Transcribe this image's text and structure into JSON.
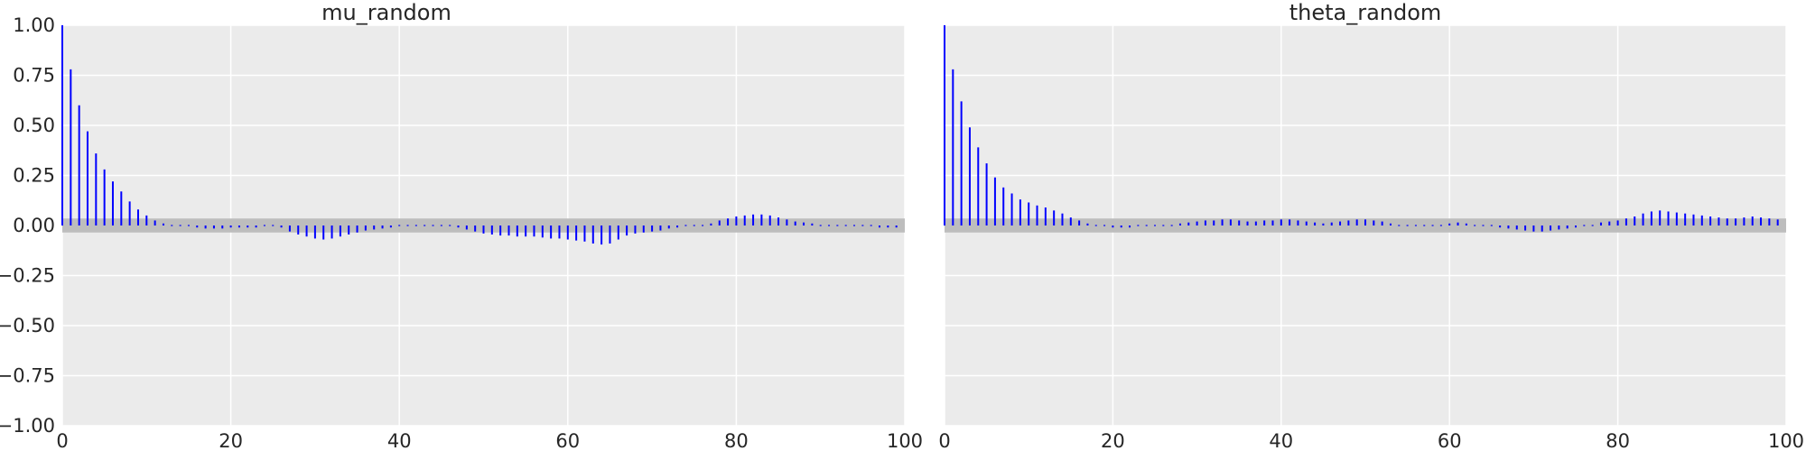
{
  "chart_data": [
    {
      "type": "bar",
      "subtype": "autocorrelation-stem",
      "title": "mu_random",
      "xlabel": "",
      "ylabel": "",
      "xlim": [
        0,
        100
      ],
      "ylim": [
        -1.0,
        1.0
      ],
      "x_ticks": [
        "0",
        "20",
        "40",
        "60",
        "80",
        "100"
      ],
      "y_ticks": [
        "1.00",
        "0.75",
        "0.50",
        "0.25",
        "0.00",
        "−0.25",
        "−0.50",
        "−0.75",
        "−1.00"
      ],
      "grid": true,
      "confidence_band": [
        -0.035,
        0.035
      ],
      "x": [
        0,
        1,
        2,
        3,
        4,
        5,
        6,
        7,
        8,
        9,
        10,
        11,
        12,
        13,
        14,
        15,
        16,
        17,
        18,
        19,
        20,
        21,
        22,
        23,
        24,
        25,
        26,
        27,
        28,
        29,
        30,
        31,
        32,
        33,
        34,
        35,
        36,
        37,
        38,
        39,
        40,
        41,
        42,
        43,
        44,
        45,
        46,
        47,
        48,
        49,
        50,
        51,
        52,
        53,
        54,
        55,
        56,
        57,
        58,
        59,
        60,
        61,
        62,
        63,
        64,
        65,
        66,
        67,
        68,
        69,
        70,
        71,
        72,
        73,
        74,
        75,
        76,
        77,
        78,
        79,
        80,
        81,
        82,
        83,
        84,
        85,
        86,
        87,
        88,
        89,
        90,
        91,
        92,
        93,
        94,
        95,
        96,
        97,
        98,
        99
      ],
      "values": [
        1.0,
        0.78,
        0.6,
        0.47,
        0.36,
        0.28,
        0.22,
        0.17,
        0.12,
        0.08,
        0.05,
        0.025,
        0.01,
        0.005,
        0.0,
        -0.005,
        -0.01,
        -0.015,
        -0.015,
        -0.015,
        -0.01,
        -0.01,
        -0.01,
        -0.01,
        -0.005,
        -0.005,
        -0.01,
        -0.03,
        -0.045,
        -0.055,
        -0.065,
        -0.07,
        -0.065,
        -0.055,
        -0.045,
        -0.035,
        -0.025,
        -0.02,
        -0.015,
        -0.01,
        -0.005,
        0.0,
        0.0,
        0.005,
        0.005,
        0.005,
        0.0,
        -0.01,
        -0.02,
        -0.03,
        -0.04,
        -0.045,
        -0.05,
        -0.05,
        -0.055,
        -0.055,
        -0.055,
        -0.06,
        -0.065,
        -0.065,
        -0.07,
        -0.075,
        -0.08,
        -0.09,
        -0.095,
        -0.09,
        -0.07,
        -0.05,
        -0.04,
        -0.035,
        -0.03,
        -0.025,
        -0.015,
        -0.01,
        -0.005,
        0.0,
        0.0,
        0.01,
        0.025,
        0.035,
        0.045,
        0.05,
        0.055,
        0.055,
        0.05,
        0.04,
        0.03,
        0.02,
        0.015,
        0.01,
        0.005,
        0.005,
        0.0,
        0.0,
        -0.005,
        -0.005,
        -0.005,
        -0.01,
        -0.01,
        -0.01
      ]
    },
    {
      "type": "bar",
      "subtype": "autocorrelation-stem",
      "title": "theta_random",
      "xlabel": "",
      "ylabel": "",
      "xlim": [
        0,
        100
      ],
      "ylim": [
        -1.0,
        1.0
      ],
      "x_ticks": [
        "0",
        "20",
        "40",
        "60",
        "80",
        "100"
      ],
      "grid": true,
      "confidence_band": [
        -0.035,
        0.035
      ],
      "x": [
        0,
        1,
        2,
        3,
        4,
        5,
        6,
        7,
        8,
        9,
        10,
        11,
        12,
        13,
        14,
        15,
        16,
        17,
        18,
        19,
        20,
        21,
        22,
        23,
        24,
        25,
        26,
        27,
        28,
        29,
        30,
        31,
        32,
        33,
        34,
        35,
        36,
        37,
        38,
        39,
        40,
        41,
        42,
        43,
        44,
        45,
        46,
        47,
        48,
        49,
        50,
        51,
        52,
        53,
        54,
        55,
        56,
        57,
        58,
        59,
        60,
        61,
        62,
        63,
        64,
        65,
        66,
        67,
        68,
        69,
        70,
        71,
        72,
        73,
        74,
        75,
        76,
        77,
        78,
        79,
        80,
        81,
        82,
        83,
        84,
        85,
        86,
        87,
        88,
        89,
        90,
        91,
        92,
        93,
        94,
        95,
        96,
        97,
        98,
        99
      ],
      "values": [
        1.0,
        0.78,
        0.62,
        0.49,
        0.39,
        0.31,
        0.24,
        0.19,
        0.16,
        0.13,
        0.115,
        0.1,
        0.09,
        0.075,
        0.06,
        0.04,
        0.025,
        0.01,
        0.0,
        -0.005,
        -0.01,
        -0.01,
        -0.01,
        -0.005,
        -0.005,
        0.0,
        0.0,
        0.005,
        0.01,
        0.015,
        0.02,
        0.025,
        0.025,
        0.03,
        0.03,
        0.025,
        0.02,
        0.02,
        0.025,
        0.025,
        0.03,
        0.03,
        0.025,
        0.02,
        0.015,
        0.01,
        0.015,
        0.02,
        0.025,
        0.03,
        0.03,
        0.025,
        0.02,
        0.01,
        0.005,
        0.0,
        -0.005,
        -0.005,
        0.0,
        0.005,
        0.01,
        0.015,
        0.01,
        0.005,
        0.0,
        -0.005,
        -0.01,
        -0.015,
        -0.02,
        -0.025,
        -0.03,
        -0.03,
        -0.025,
        -0.02,
        -0.015,
        -0.01,
        0.0,
        0.005,
        0.015,
        0.02,
        0.025,
        0.035,
        0.045,
        0.06,
        0.07,
        0.075,
        0.07,
        0.065,
        0.06,
        0.055,
        0.05,
        0.045,
        0.04,
        0.035,
        0.035,
        0.04,
        0.045,
        0.04,
        0.035,
        0.03
      ]
    }
  ]
}
